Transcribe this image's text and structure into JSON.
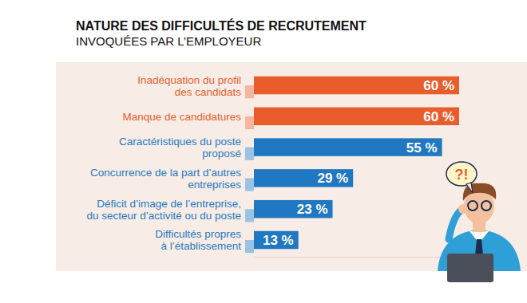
{
  "chart_data": {
    "type": "bar",
    "orientation": "horizontal",
    "title": "NATURE DES DIFFICULTÉS DE RECRUTEMENT",
    "subtitle": "INVOQUÉES PAR L’EMPLOYEUR",
    "categories": [
      "Inadéquation du profil\ndes candidats",
      "Manque de candidatures",
      "Caractéristiques du poste\nproposé",
      "Concurrence de la part d’autres\nentreprises",
      "Déficit d’image de l’entreprise,\ndu secteur d’activité ou du poste",
      "Difficultés propres\nà l’établissement"
    ],
    "values": [
      60,
      60,
      55,
      29,
      23,
      13
    ],
    "value_labels": [
      "60 %",
      "60 %",
      "55 %",
      "29 %",
      "23 %",
      "13 %"
    ],
    "colors": [
      "#e95d2c",
      "#e95d2c",
      "#1f78c1",
      "#1f78c1",
      "#1f78c1",
      "#1f78c1"
    ],
    "xlim": [
      0,
      60
    ],
    "data_labels": true,
    "grid": false,
    "tick_labels": false,
    "annotations": [
      "?!"
    ]
  }
}
